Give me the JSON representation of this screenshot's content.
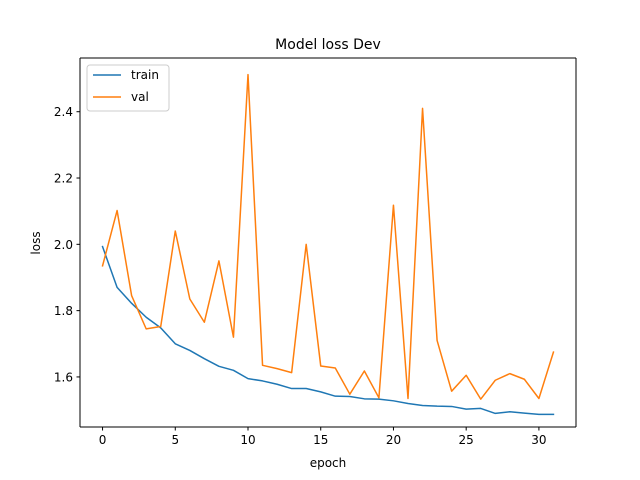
{
  "chart_data": {
    "type": "line",
    "title": "Model loss Dev",
    "xlabel": "epoch",
    "ylabel": "loss",
    "xlim": [
      -1.55,
      32.55
    ],
    "ylim": [
      1.449,
      2.562
    ],
    "xticks": [
      0,
      5,
      10,
      15,
      20,
      25,
      30
    ],
    "yticks": [
      1.6,
      1.8,
      2.0,
      2.2,
      2.4
    ],
    "xtick_labels": [
      "0",
      "5",
      "10",
      "15",
      "20",
      "25",
      "30"
    ],
    "ytick_labels": [
      "1.6",
      "1.8",
      "2.0",
      "2.2",
      "2.4"
    ],
    "grid": false,
    "legend_position": "upper-left",
    "x": [
      0,
      1,
      2,
      3,
      4,
      5,
      6,
      7,
      8,
      9,
      10,
      11,
      12,
      13,
      14,
      15,
      16,
      17,
      18,
      19,
      20,
      21,
      22,
      23,
      24,
      25,
      26,
      27,
      28,
      29,
      30,
      31
    ],
    "series": [
      {
        "name": "train",
        "color": "#1f77b4",
        "values": [
          1.993,
          1.87,
          1.822,
          1.78,
          1.748,
          1.7,
          1.68,
          1.655,
          1.632,
          1.62,
          1.595,
          1.588,
          1.578,
          1.565,
          1.565,
          1.555,
          1.542,
          1.541,
          1.534,
          1.533,
          1.528,
          1.52,
          1.514,
          1.512,
          1.511,
          1.503,
          1.505,
          1.49,
          1.495,
          1.491,
          1.487,
          1.487
        ]
      },
      {
        "name": "val",
        "color": "#ff7f0e",
        "values": [
          1.935,
          2.102,
          1.845,
          1.745,
          1.752,
          2.04,
          1.835,
          1.765,
          1.95,
          1.72,
          2.512,
          1.635,
          1.625,
          1.613,
          2.0,
          1.633,
          1.627,
          1.548,
          1.618,
          1.537,
          2.118,
          1.535,
          2.41,
          1.71,
          1.557,
          1.605,
          1.533,
          1.59,
          1.61,
          1.593,
          1.535,
          1.675
        ]
      }
    ]
  }
}
